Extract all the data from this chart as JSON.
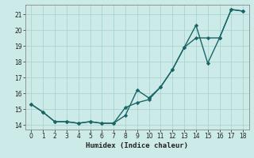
{
  "xlabel": "Humidex (Indice chaleur)",
  "background_color": "#cceae8",
  "line_color": "#1a6666",
  "grid_color": "#aad4d0",
  "series1_x": [
    0,
    1,
    2,
    3,
    4,
    5,
    6,
    7,
    8,
    9,
    10,
    11,
    12,
    13,
    14,
    15,
    16,
    17,
    18
  ],
  "series1_y": [
    15.3,
    14.8,
    14.2,
    14.2,
    14.1,
    14.2,
    14.1,
    14.1,
    14.6,
    16.2,
    15.7,
    16.4,
    17.5,
    18.9,
    20.3,
    17.9,
    19.5,
    21.3,
    21.2
  ],
  "series2_x": [
    0,
    1,
    2,
    3,
    4,
    5,
    6,
    7,
    8,
    9,
    10,
    11,
    12,
    13,
    14,
    15,
    16,
    17,
    18
  ],
  "series2_y": [
    15.3,
    14.8,
    14.2,
    14.2,
    14.1,
    14.2,
    14.1,
    14.1,
    15.1,
    15.4,
    15.6,
    16.4,
    17.5,
    18.9,
    19.5,
    19.5,
    19.5,
    21.3,
    21.2
  ],
  "xlim": [
    -0.5,
    18.5
  ],
  "ylim": [
    13.7,
    21.6
  ],
  "yticks": [
    14,
    15,
    16,
    17,
    18,
    19,
    20,
    21
  ],
  "xticks": [
    0,
    1,
    2,
    3,
    4,
    5,
    6,
    7,
    8,
    9,
    10,
    11,
    12,
    13,
    14,
    15,
    16,
    17,
    18
  ],
  "marker": "D",
  "markersize": 2.2,
  "linewidth": 1.0,
  "tick_fontsize": 5.5,
  "xlabel_fontsize": 6.5
}
